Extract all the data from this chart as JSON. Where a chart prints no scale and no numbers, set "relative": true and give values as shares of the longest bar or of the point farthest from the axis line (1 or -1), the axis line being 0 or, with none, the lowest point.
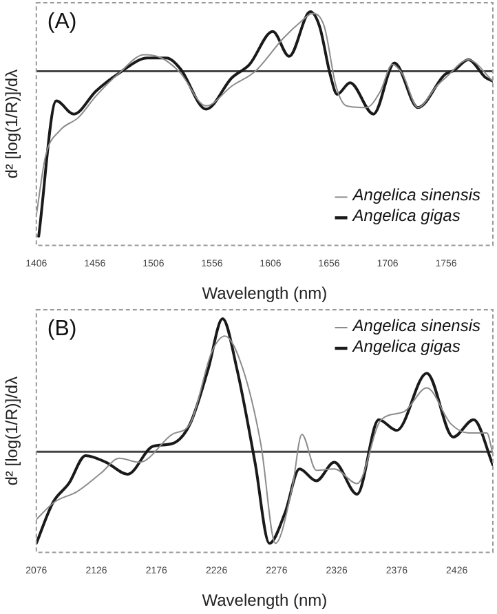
{
  "chart_data": [
    {
      "type": "line",
      "title": "(A)",
      "xlabel": "Wavelength (nm)",
      "ylabel": "d² [log(1/R)]/dλ",
      "relative": true,
      "legend": "bottom right",
      "grid": false,
      "marker": "none",
      "xlim": [
        1406,
        1796
      ],
      "xticks": [
        1406,
        1456,
        1506,
        1556,
        1606,
        1656,
        1706,
        1756
      ],
      "series": [
        {
          "name": "Angelica sinensis",
          "color": "#8c8c8c",
          "x": [
            1406,
            1414,
            1426,
            1442,
            1457,
            1477,
            1498,
            1513,
            1529,
            1551,
            1573,
            1593,
            1617,
            1632,
            1642,
            1652,
            1662,
            1671,
            1688,
            1700,
            1710,
            1719,
            1732,
            1748,
            1757,
            1775,
            1796
          ],
          "values": [
            -0.87,
            -0.51,
            -0.36,
            -0.28,
            -0.15,
            -0.01,
            0.1,
            0.08,
            -0.01,
            -0.21,
            -0.09,
            0.0,
            0.2,
            0.3,
            0.35,
            0.27,
            -0.09,
            -0.21,
            -0.22,
            -0.12,
            0.04,
            -0.02,
            -0.22,
            -0.09,
            -0.03,
            0.07,
            -0.06
          ]
        },
        {
          "name": "Angelica gigas",
          "color": "#1a1a1a",
          "x": [
            1408,
            1423,
            1438,
            1457,
            1477,
            1501,
            1517,
            1529,
            1551,
            1573,
            1588,
            1608,
            1622,
            1640,
            1648,
            1657,
            1663,
            1674,
            1694,
            1712,
            1732,
            1755,
            1763,
            1775,
            1790,
            1796
          ],
          "values": [
            -1.0,
            -0.18,
            -0.26,
            -0.12,
            -0.01,
            0.08,
            0.08,
            0.015,
            -0.23,
            -0.04,
            0.04,
            0.24,
            0.09,
            0.36,
            0.27,
            -0.02,
            -0.14,
            -0.07,
            -0.26,
            0.05,
            -0.22,
            -0.02,
            0.005,
            0.07,
            -0.04,
            -0.06
          ]
        }
      ]
    },
    {
      "type": "line",
      "title": "(B)",
      "xlabel": "Wavelength (nm)",
      "ylabel": "d² [log(1/R)]/dλ",
      "relative": true,
      "legend": "top right",
      "grid": false,
      "marker": "none",
      "xlim": [
        2076,
        2456
      ],
      "xticks": [
        2076,
        2126,
        2176,
        2226,
        2276,
        2326,
        2376,
        2426
      ],
      "series": [
        {
          "name": "Angelica sinensis",
          "color": "#8c8c8c",
          "x": [
            2076,
            2091,
            2110,
            2130,
            2145,
            2162,
            2189,
            2204,
            2222,
            2233,
            2248,
            2263,
            2275,
            2289,
            2297,
            2309,
            2324,
            2343,
            2363,
            2382,
            2401,
            2421,
            2436,
            2451,
            2456
          ],
          "values": [
            -0.51,
            -0.38,
            -0.3,
            -0.16,
            -0.05,
            -0.08,
            0.13,
            0.21,
            0.75,
            0.87,
            0.62,
            0.05,
            -0.69,
            -0.27,
            0.13,
            -0.14,
            -0.13,
            -0.24,
            0.24,
            0.3,
            0.48,
            0.21,
            0.14,
            0.14,
            -0.02
          ]
        },
        {
          "name": "Angelica gigas",
          "color": "#1a1a1a",
          "x": [
            2076,
            2090,
            2103,
            2117,
            2134,
            2152,
            2173,
            2189,
            2204,
            2219,
            2231,
            2243,
            2258,
            2270,
            2283,
            2295,
            2309,
            2324,
            2343,
            2361,
            2376,
            2401,
            2423,
            2440,
            2456
          ],
          "values": [
            -0.69,
            -0.38,
            -0.24,
            -0.03,
            -0.08,
            -0.17,
            0.04,
            0.06,
            0.21,
            0.62,
            1.0,
            0.62,
            -0.08,
            -0.69,
            -0.46,
            -0.13,
            -0.22,
            -0.08,
            -0.32,
            0.24,
            0.16,
            0.59,
            0.11,
            0.24,
            -0.1
          ]
        }
      ]
    }
  ]
}
